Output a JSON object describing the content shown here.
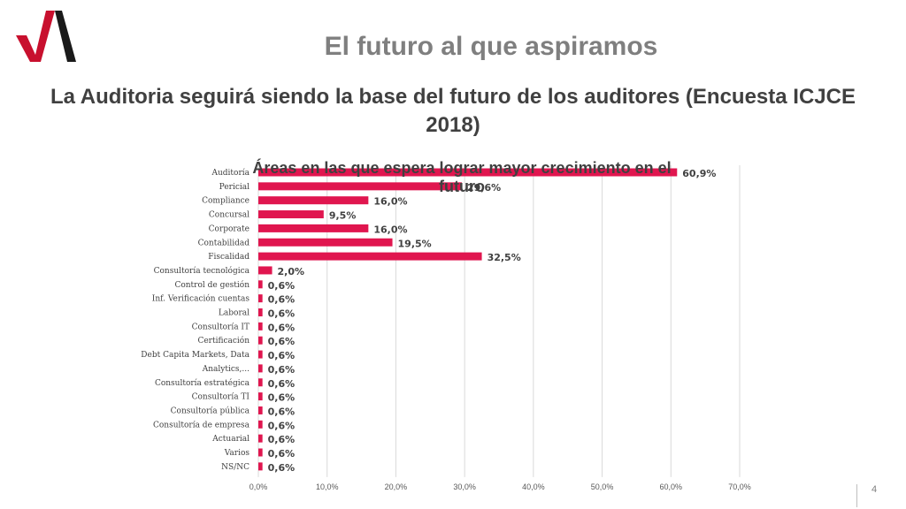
{
  "slide": {
    "title": "El futuro al que aspiramos",
    "subtitle": "La Auditoria seguirá siendo la base del futuro de los auditores (Encuesta ICJCE 2018)",
    "page_number": "4",
    "logo_colors": {
      "red": "#c8102e",
      "black": "#1a1a1a"
    }
  },
  "chart_data": {
    "type": "bar",
    "orientation": "horizontal",
    "title": "Áreas en las que espera lograr mayor crecimiento en el futuro",
    "categories": [
      "Auditoría",
      "Pericial",
      "Compliance",
      "Concursal",
      "Corporate",
      "Contabilidad",
      "Fiscalidad",
      "Consultoría tecnológica",
      "Control de gestión",
      "Inf. Verificación cuentas",
      "Laboral",
      "Consultoría IT",
      "Certificación",
      "Debt Capita Markets, Data",
      "Analytics,...",
      "Consultoría estratégica",
      "Consultoría TI",
      "Consultoría pública",
      "Consultoría de empresa",
      "Actuarial",
      "Varios",
      "NS/NC"
    ],
    "values": [
      60.9,
      29.6,
      16.0,
      9.5,
      16.0,
      19.5,
      32.5,
      2.0,
      0.6,
      0.6,
      0.6,
      0.6,
      0.6,
      0.6,
      0.6,
      0.6,
      0.6,
      0.6,
      0.6,
      0.6,
      0.6,
      0.6
    ],
    "data_labels": [
      "60,9%",
      "29,6%",
      "16,0%",
      "9,5%",
      "16,0%",
      "19,5%",
      "32,5%",
      "2,0%",
      "0,6%",
      "0,6%",
      "0,6%",
      "0,6%",
      "0,6%",
      "0,6%",
      "0,6%",
      "0,6%",
      "0,6%",
      "0,6%",
      "0,6%",
      "0,6%",
      "0,6%",
      "0,6%"
    ],
    "xlim": [
      0,
      70
    ],
    "xticks": [
      0,
      10,
      20,
      30,
      40,
      50,
      60,
      70
    ],
    "xtick_labels": [
      "0,0%",
      "10,0%",
      "20,0%",
      "30,0%",
      "40,0%",
      "50,0%",
      "60,0%",
      "70,0%"
    ],
    "grid": true,
    "legend": "none",
    "bar_color": "#e0164f"
  }
}
